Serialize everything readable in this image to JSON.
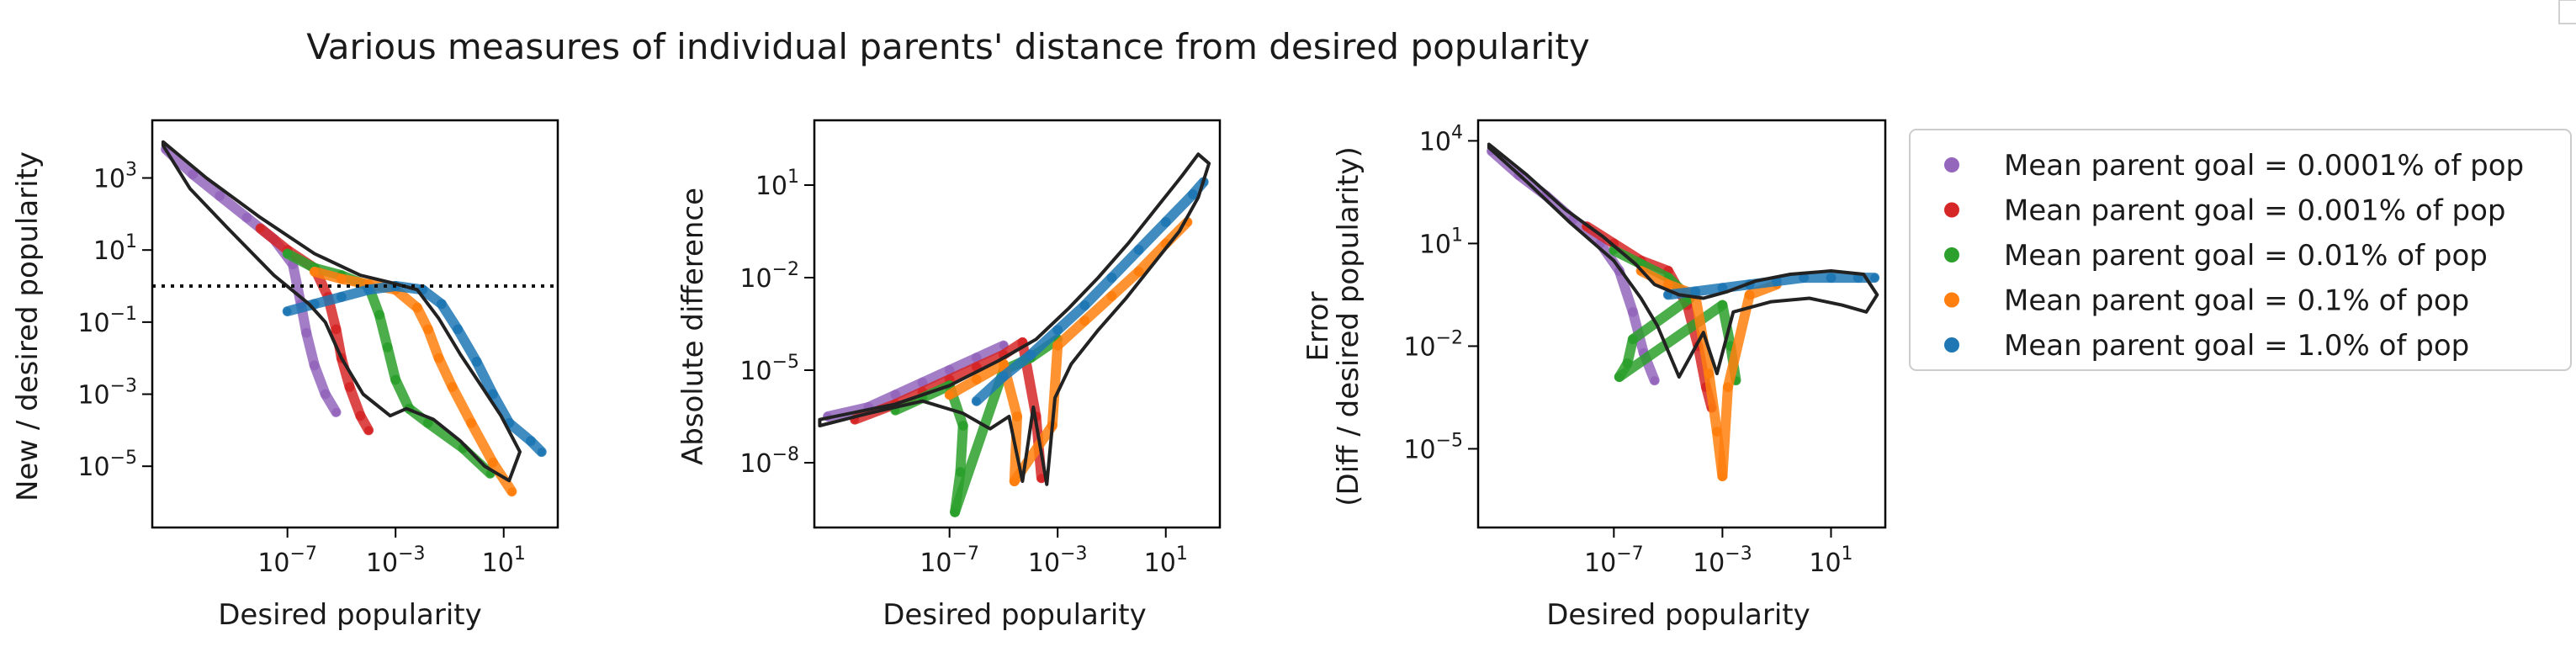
{
  "figure": {
    "title": "Various measures of individual parents' distance from desired popularity"
  },
  "legend": {
    "placement": "right, outside plots",
    "entries": [
      {
        "label": "Mean parent goal = 0.0001% of pop",
        "color": "#9467bd"
      },
      {
        "label": "Mean parent goal = 0.001% of pop",
        "color": "#d62728"
      },
      {
        "label": "Mean parent goal = 0.01% of pop",
        "color": "#2ca02c"
      },
      {
        "label": "Mean parent goal = 0.1% of pop",
        "color": "#ff7f0e"
      },
      {
        "label": "Mean parent goal = 1.0% of pop",
        "color": "#1f77b4"
      }
    ]
  },
  "chart_data": [
    {
      "type": "scatter",
      "xscale": "log",
      "yscale": "log",
      "xlabel": "Desired popularity",
      "ylabel": "New / desired popularity",
      "xlim_exp": [
        -12,
        3
      ],
      "ylim_exp": [
        -6.7,
        4.6
      ],
      "xticks": [
        {
          "exp": -7,
          "label": "10^-7"
        },
        {
          "exp": -3,
          "label": "10^-3"
        },
        {
          "exp": 1,
          "label": "10^1"
        }
      ],
      "yticks": [
        {
          "exp": 3,
          "label": "10^3"
        },
        {
          "exp": 1,
          "label": "10^1"
        },
        {
          "exp": -1,
          "label": "10^-1"
        },
        {
          "exp": -3,
          "label": "10^-3"
        },
        {
          "exp": -5,
          "label": "10^-5"
        }
      ],
      "reference_line": {
        "y": 1,
        "style": "dotted"
      },
      "series": [
        {
          "name": "Mean parent goal = 0.0001% of pop",
          "points": [
            [
              -11.5,
              3.8
            ],
            [
              -10.5,
              3.1
            ],
            [
              -9.5,
              2.5
            ],
            [
              -8.5,
              1.9
            ],
            [
              -7.5,
              1.3
            ],
            [
              -6.8,
              0.6
            ],
            [
              -6.5,
              -0.5
            ],
            [
              -6.3,
              -1.3
            ],
            [
              -6.0,
              -2.2
            ],
            [
              -5.6,
              -3.0
            ],
            [
              -5.2,
              -3.5
            ]
          ]
        },
        {
          "name": "Mean parent goal = 0.001% of pop",
          "points": [
            [
              -8,
              1.6
            ],
            [
              -7,
              1.0
            ],
            [
              -6,
              0.5
            ],
            [
              -5.5,
              -0.3
            ],
            [
              -5.2,
              -1.2
            ],
            [
              -5.0,
              -2.0
            ],
            [
              -4.7,
              -2.8
            ],
            [
              -4.3,
              -3.6
            ],
            [
              -4.0,
              -4.0
            ]
          ]
        },
        {
          "name": "Mean parent goal = 0.01% of pop",
          "points": [
            [
              -7,
              0.9
            ],
            [
              -6,
              0.5
            ],
            [
              -5,
              0.3
            ],
            [
              -4,
              0.0
            ],
            [
              -3.6,
              -0.8
            ],
            [
              -3.3,
              -1.7
            ],
            [
              -3.0,
              -2.6
            ],
            [
              -2.5,
              -3.4
            ],
            [
              -1.8,
              -3.8
            ],
            [
              -0.5,
              -4.5
            ],
            [
              0.5,
              -5.2
            ]
          ]
        },
        {
          "name": "Mean parent goal = 0.1% of pop",
          "points": [
            [
              -6,
              0.4
            ],
            [
              -5,
              0.2
            ],
            [
              -4,
              0.05
            ],
            [
              -3,
              -0.1
            ],
            [
              -2.2,
              -0.6
            ],
            [
              -1.8,
              -1.2
            ],
            [
              -1.4,
              -2.0
            ],
            [
              -0.9,
              -2.8
            ],
            [
              -0.2,
              -3.8
            ],
            [
              0.6,
              -4.9
            ],
            [
              1.3,
              -5.7
            ]
          ]
        },
        {
          "name": "Mean parent goal = 1.0% of pop",
          "points": [
            [
              -7,
              -0.7
            ],
            [
              -6,
              -0.5
            ],
            [
              -5,
              -0.3
            ],
            [
              -4,
              -0.1
            ],
            [
              -3,
              0.0
            ],
            [
              -2,
              -0.1
            ],
            [
              -1.3,
              -0.5
            ],
            [
              -0.7,
              -1.2
            ],
            [
              0,
              -2.1
            ],
            [
              0.6,
              -3.0
            ],
            [
              1.2,
              -3.8
            ],
            [
              2.0,
              -4.3
            ],
            [
              2.4,
              -4.6
            ]
          ]
        }
      ]
    },
    {
      "type": "scatter",
      "xscale": "log",
      "yscale": "log",
      "xlabel": "Desired popularity",
      "ylabel": "Absolute difference",
      "xlim_exp": [
        -12,
        3
      ],
      "ylim_exp": [
        -10.1,
        3.1
      ],
      "xticks": [
        {
          "exp": -7,
          "label": "10^-7"
        },
        {
          "exp": -3,
          "label": "10^-3"
        },
        {
          "exp": 1,
          "label": "10^1"
        }
      ],
      "yticks": [
        {
          "exp": 1,
          "label": "10^1"
        },
        {
          "exp": -2,
          "label": "10^-2"
        },
        {
          "exp": -5,
          "label": "10^-5"
        },
        {
          "exp": -8,
          "label": "10^-8"
        }
      ],
      "series": [
        {
          "name": "Mean parent goal = 0.0001% of pop",
          "points": [
            [
              -11.5,
              -6.5
            ],
            [
              -10,
              -6.2
            ],
            [
              -9,
              -5.8
            ],
            [
              -8,
              -5.4
            ],
            [
              -7,
              -5.0
            ],
            [
              -6,
              -4.6
            ],
            [
              -5,
              -4.2
            ]
          ]
        },
        {
          "name": "Mean parent goal = 0.001% of pop",
          "points": [
            [
              -10.5,
              -6.6
            ],
            [
              -9,
              -6.1
            ],
            [
              -8,
              -5.7
            ],
            [
              -7,
              -5.3
            ],
            [
              -6,
              -4.9
            ],
            [
              -5,
              -4.5
            ],
            [
              -4.3,
              -4.1
            ],
            [
              -3.8,
              -6.5
            ],
            [
              -3.6,
              -8.5
            ]
          ]
        },
        {
          "name": "Mean parent goal = 0.01% of pop",
          "points": [
            [
              -9,
              -6.3
            ],
            [
              -8,
              -5.9
            ],
            [
              -7,
              -5.5
            ],
            [
              -6.5,
              -6.8
            ],
            [
              -6.6,
              -8.3
            ],
            [
              -6.8,
              -9.6
            ],
            [
              -5,
              -5.0
            ],
            [
              -4,
              -4.6
            ],
            [
              -3,
              -4.0
            ]
          ]
        },
        {
          "name": "Mean parent goal = 0.1% of pop",
          "points": [
            [
              -7,
              -5.8
            ],
            [
              -6,
              -5.3
            ],
            [
              -5,
              -4.8
            ],
            [
              -4.5,
              -6.5
            ],
            [
              -4.6,
              -8.6
            ],
            [
              -3.2,
              -6.8
            ],
            [
              -3,
              -4.2
            ],
            [
              -2,
              -3.4
            ],
            [
              -1,
              -2.6
            ],
            [
              0,
              -1.8
            ],
            [
              1,
              -0.9
            ],
            [
              1.8,
              -0.2
            ]
          ]
        },
        {
          "name": "Mean parent goal = 1.0% of pop",
          "points": [
            [
              -6,
              -6.0
            ],
            [
              -5,
              -5.2
            ],
            [
              -4,
              -4.5
            ],
            [
              -3,
              -3.7
            ],
            [
              -2,
              -2.9
            ],
            [
              -1,
              -2.0
            ],
            [
              0,
              -1.1
            ],
            [
              1,
              -0.2
            ],
            [
              2,
              0.7
            ],
            [
              2.4,
              1.1
            ]
          ]
        }
      ]
    },
    {
      "type": "scatter",
      "xscale": "log",
      "yscale": "log",
      "xlabel": "Desired popularity",
      "ylabel": "Error\n(Diff / desired popularity)",
      "xlim_exp": [
        -12,
        3
      ],
      "ylim_exp": [
        -7.3,
        4.6
      ],
      "xticks": [
        {
          "exp": -7,
          "label": "10^-7"
        },
        {
          "exp": -3,
          "label": "10^-3"
        },
        {
          "exp": 1,
          "label": "10^1"
        }
      ],
      "yticks": [
        {
          "exp": 4,
          "label": "10^4"
        },
        {
          "exp": 1,
          "label": "10^1"
        },
        {
          "exp": -2,
          "label": "10^-2"
        },
        {
          "exp": -5,
          "label": "10^-5"
        }
      ],
      "series": [
        {
          "name": "Mean parent goal = 0.0001% of pop",
          "points": [
            [
              -11.5,
              3.7
            ],
            [
              -10.5,
              3.0
            ],
            [
              -9.5,
              2.4
            ],
            [
              -8.5,
              1.7
            ],
            [
              -7.5,
              1.0
            ],
            [
              -6.8,
              0.2
            ],
            [
              -6.3,
              -1.0
            ],
            [
              -5.9,
              -2.2
            ],
            [
              -5.5,
              -3.0
            ]
          ]
        },
        {
          "name": "Mean parent goal = 0.001% of pop",
          "points": [
            [
              -8,
              1.5
            ],
            [
              -7,
              1.0
            ],
            [
              -6,
              0.5
            ],
            [
              -5,
              0.2
            ],
            [
              -4.3,
              -0.8
            ],
            [
              -3.9,
              -2.0
            ],
            [
              -3.6,
              -3.2
            ],
            [
              -3.4,
              -3.8
            ]
          ]
        },
        {
          "name": "Mean parent goal = 0.01% of pop",
          "points": [
            [
              -7,
              0.8
            ],
            [
              -6,
              0.4
            ],
            [
              -5,
              0.0
            ],
            [
              -4.2,
              -0.6
            ],
            [
              -6.3,
              -1.8
            ],
            [
              -6.5,
              -2.5
            ],
            [
              -6.8,
              -2.9
            ],
            [
              -3,
              -0.8
            ],
            [
              -2.7,
              -2.0
            ],
            [
              -2.5,
              -3.0
            ]
          ]
        },
        {
          "name": "Mean parent goal = 0.1% of pop",
          "points": [
            [
              -6,
              0.2
            ],
            [
              -5,
              -0.2
            ],
            [
              -4,
              -0.5
            ],
            [
              -3.5,
              -2.8
            ],
            [
              -3.2,
              -4.5
            ],
            [
              -3.0,
              -5.8
            ],
            [
              -2.8,
              -3.2
            ],
            [
              -2,
              -0.5
            ],
            [
              -1,
              -0.2
            ]
          ]
        },
        {
          "name": "Mean parent goal = 1.0% of pop",
          "points": [
            [
              -5,
              -0.5
            ],
            [
              -4,
              -0.4
            ],
            [
              -3,
              -0.3
            ],
            [
              -2,
              -0.2
            ],
            [
              -1,
              -0.1
            ],
            [
              0,
              0.0
            ],
            [
              1,
              0.0
            ],
            [
              2,
              0.0
            ],
            [
              2.6,
              0.0
            ]
          ]
        }
      ]
    }
  ]
}
